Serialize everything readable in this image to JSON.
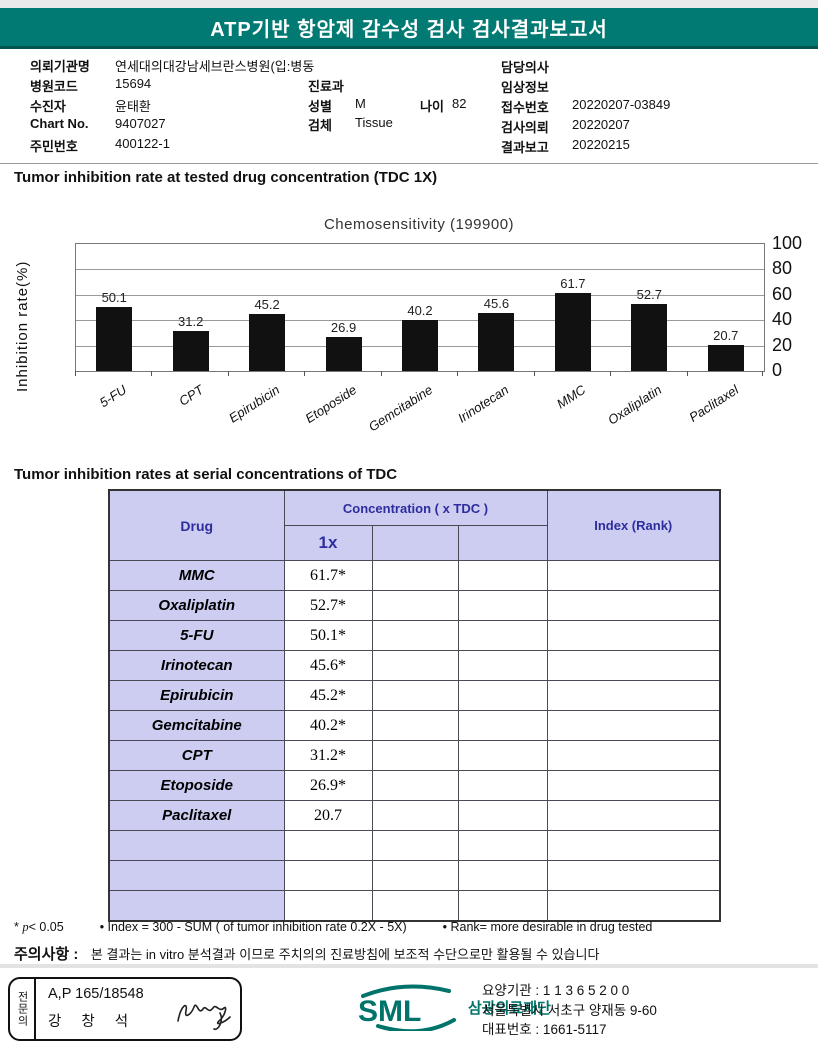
{
  "header": {
    "title": "ATP기반 항암제 감수성 검사 검사결과보고서"
  },
  "info": {
    "left": [
      {
        "label": "의뢰기관명",
        "value": "연세대의대강남세브란스병원(입:병동"
      },
      {
        "label": "병원코드",
        "value": "15694"
      },
      {
        "label": "수진자",
        "value": "윤태환"
      },
      {
        "label": "Chart No.",
        "value": "9407027"
      },
      {
        "label": "주민번호",
        "value": "400122-1"
      }
    ],
    "mid": [
      {
        "label": "진료과",
        "value": ""
      },
      {
        "label": "성별",
        "value": "M"
      },
      {
        "label": "나이",
        "value": "82"
      },
      {
        "label": "검체",
        "value": "Tissue"
      }
    ],
    "right": [
      {
        "label": "담당의사",
        "value": ""
      },
      {
        "label": "임상정보",
        "value": ""
      },
      {
        "label": "접수번호",
        "value": "20220207-03849"
      },
      {
        "label": "검사의뢰",
        "value": "20220207"
      },
      {
        "label": "결과보고",
        "value": "20220215"
      }
    ]
  },
  "section1": {
    "heading": "Tumor inhibition rate at tested drug concentration (TDC 1X)"
  },
  "chart_data": {
    "type": "bar",
    "title": "Chemosensitivity (199900)",
    "categories": [
      "5-FU",
      "CPT",
      "Epirubicin",
      "Etoposide",
      "Gemcitabine",
      "Irinotecan",
      "MMC",
      "Oxaliplatin",
      "Paclitaxel"
    ],
    "values": [
      50.1,
      31.2,
      45.2,
      26.9,
      40.2,
      45.6,
      61.7,
      52.7,
      20.7
    ],
    "ylabel": "Inhibition rate(%)",
    "ylim": [
      0,
      100
    ],
    "yticks": [
      100,
      80,
      60,
      40,
      20,
      0
    ],
    "grid": true,
    "legend": "none",
    "bar_color": "#111111"
  },
  "section2": {
    "heading": "Tumor inhibition rates at serial concentrations of TDC"
  },
  "table": {
    "headers": {
      "drug": "Drug",
      "concentration": "Concentration ( x TDC )",
      "conc_1x": "1x",
      "index": "Index (Rank)"
    },
    "rows": [
      {
        "drug": "MMC",
        "value": "61.7*"
      },
      {
        "drug": "Oxaliplatin",
        "value": "52.7*"
      },
      {
        "drug": "5-FU",
        "value": "50.1*"
      },
      {
        "drug": "Irinotecan",
        "value": "45.6*"
      },
      {
        "drug": "Epirubicin",
        "value": "45.2*"
      },
      {
        "drug": "Gemcitabine",
        "value": "40.2*"
      },
      {
        "drug": "CPT",
        "value": "31.2*"
      },
      {
        "drug": "Etoposide",
        "value": "26.9*"
      },
      {
        "drug": "Paclitaxel",
        "value": "20.7"
      },
      {
        "drug": "",
        "value": ""
      },
      {
        "drug": "",
        "value": ""
      },
      {
        "drug": "",
        "value": ""
      }
    ]
  },
  "footnote": {
    "sig_star": "* ",
    "sig_p": "p",
    "sig_rest": "< 0.05",
    "index_note": "• Index = 300 - SUM ( of tumor inhibition rate 0.2X  -  5X)",
    "rank_note": "• Rank= more desirable in drug tested"
  },
  "caution": {
    "label": "주의사항 :",
    "text": "본 결과는 in vitro 분석결과 이므로 주치의의 진료방침에 보조적 수단으로만 활용될 수 있습니다"
  },
  "footer": {
    "stamp": {
      "side_label": "전문의",
      "line1": "A,P 165/18548",
      "line2": "강 창 석"
    },
    "logo": {
      "text": "SML",
      "org": "삼광의료재단"
    },
    "address": [
      "요양기관 : 1 1 3 6 5 2 0 0",
      "서울특별시 서초구 양재동 9-60",
      "대표번호 : 1661-5117"
    ]
  },
  "colors": {
    "teal": "#007a72",
    "lavender": "#cdcdf2",
    "navy": "#2d2d9e",
    "bar": "#111111"
  }
}
